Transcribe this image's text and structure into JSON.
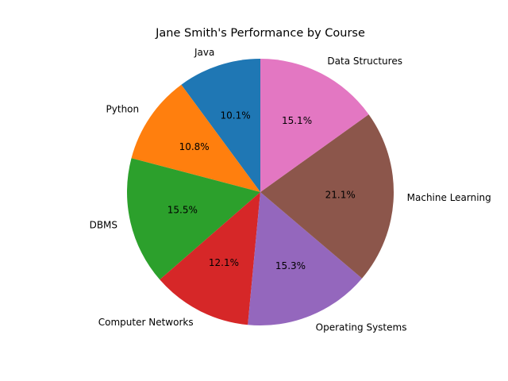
{
  "chart_data": {
    "type": "pie",
    "title": "Jane Smith's Performance by Course",
    "categories": [
      "Java",
      "Python",
      "DBMS",
      "Computer Networks",
      "Operating Systems",
      "Machine Learning",
      "Data Structures"
    ],
    "values": [
      10.1,
      10.8,
      15.5,
      12.1,
      15.3,
      21.1,
      15.1
    ],
    "value_labels": [
      "10.1%",
      "10.8%",
      "15.5%",
      "12.1%",
      "15.3%",
      "21.1%",
      "15.1%"
    ],
    "colors": [
      "#1f77b4",
      "#ff7f0e",
      "#2ca02c",
      "#d62728",
      "#9467bd",
      "#8c564b",
      "#e377c2"
    ],
    "start_angle_deg": 90,
    "direction": "counterclockwise",
    "legend": "none"
  }
}
